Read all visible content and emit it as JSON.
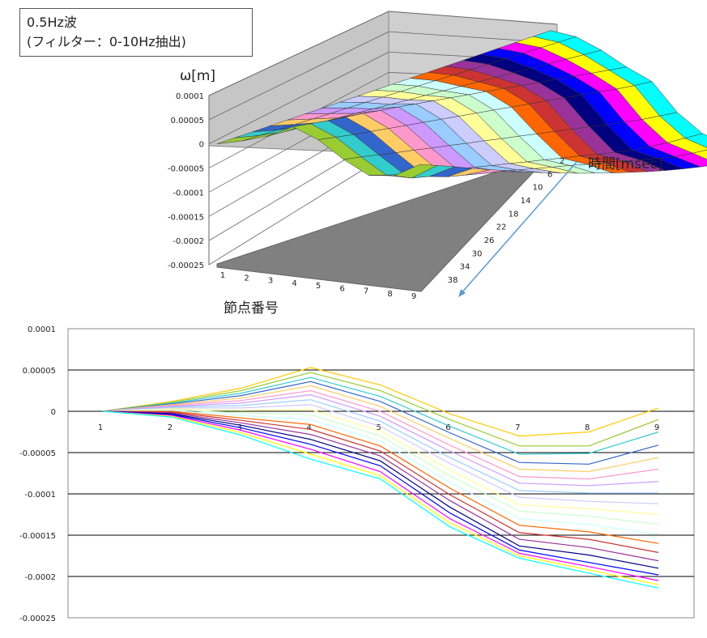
{
  "annotation": {
    "line1": "0.5Hz波",
    "line2": "(フィルター：0-10Hz抽出)"
  },
  "colors": {
    "line_palette": [
      "#ffcc00",
      "#99cc33",
      "#33cccc",
      "#3366cc",
      "#ffcc66",
      "#ff99cc",
      "#cc99ff",
      "#99ccff",
      "#ccccff",
      "#ffff99",
      "#ccffcc",
      "#ccffff",
      "#ff6600",
      "#cc3333",
      "#993399",
      "#000080",
      "#0000ff",
      "#ff00ff",
      "#ffff00",
      "#00ffff"
    ],
    "floor": "#808080",
    "wall": "#c8c8c8"
  },
  "chart_data": [
    {
      "type": "surface3d",
      "zlabel": "ω[m]",
      "xlabel": "節点番号",
      "ylabel": "時間[msec]",
      "x_ticks": [
        "1",
        "2",
        "3",
        "4",
        "5",
        "6",
        "7",
        "8",
        "9"
      ],
      "y_ticks": [
        "2",
        "6",
        "10",
        "14",
        "18",
        "22",
        "26",
        "30",
        "34",
        "38"
      ],
      "z_ticks": [
        "0.0001",
        "0.00005",
        "0",
        "-0.00005",
        "-0.0001",
        "-0.00015",
        "-0.0002",
        "-0.00025"
      ],
      "zlim": [
        -0.00025,
        0.0001
      ]
    },
    {
      "type": "line",
      "categories": [
        "1",
        "2",
        "3",
        "4",
        "5",
        "6",
        "7",
        "8",
        "9"
      ],
      "y_ticks": [
        "0.0001",
        "0.00005",
        "0",
        "-0.00005",
        "-0.0001",
        "-0.00015",
        "-0.0002",
        "-0.00025"
      ],
      "ylim": [
        -0.00025,
        0.0001
      ],
      "grid": true,
      "series": [
        {
          "values": [
            0,
            1.2e-05,
            2.8e-05,
            5.3e-05,
            3.2e-05,
            -3e-06,
            -3e-05,
            -2.5e-05,
            4e-06
          ]
        },
        {
          "values": [
            0,
            1.1e-05,
            2.5e-05,
            4.7e-05,
            2.5e-05,
            -1e-05,
            -4.2e-05,
            -4.2e-05,
            -1e-05
          ]
        },
        {
          "values": [
            0,
            1e-05,
            2.2e-05,
            4.1e-05,
            1.8e-05,
            -1.8e-05,
            -5.2e-05,
            -5.1e-05,
            -2.5e-05
          ]
        },
        {
          "values": [
            0,
            9e-06,
            1.9e-05,
            3.6e-05,
            1.2e-05,
            -2.6e-05,
            -6.2e-05,
            -6.4e-05,
            -4.1e-05
          ]
        },
        {
          "values": [
            0,
            8e-06,
            1.6e-05,
            3.1e-05,
            6e-06,
            -3.3e-05,
            -7e-05,
            -7.3e-05,
            -5.6e-05
          ]
        },
        {
          "values": [
            0,
            7e-06,
            1.3e-05,
            2.5e-05,
            0.0,
            -4.1e-05,
            -7.9e-05,
            -8.2e-05,
            -7e-05
          ]
        },
        {
          "values": [
            0,
            6e-06,
            1e-05,
            2e-05,
            -6e-06,
            -4.8e-05,
            -8.7e-05,
            -9e-05,
            -8.5e-05
          ]
        },
        {
          "values": [
            0,
            5e-06,
            7e-06,
            1.4e-05,
            -1.2e-05,
            -5.6e-05,
            -9.6e-05,
            -9.9e-05,
            -9.9e-05
          ]
        },
        {
          "values": [
            0,
            4e-06,
            4e-06,
            8e-06,
            -1.8e-05,
            -6.3e-05,
            -0.000104,
            -0.000109,
            -0.000112
          ]
        },
        {
          "values": [
            0,
            3e-06,
            1e-06,
            2e-06,
            -2.4e-05,
            -7.1e-05,
            -0.000113,
            -0.000118,
            -0.000125
          ]
        },
        {
          "values": [
            0,
            2e-06,
            -2e-06,
            -4e-06,
            -3e-05,
            -7.8e-05,
            -0.000121,
            -0.000127,
            -0.000137
          ]
        },
        {
          "values": [
            0,
            1e-06,
            -5e-06,
            -1e-05,
            -3.6e-05,
            -8.6e-05,
            -0.00013,
            -0.000137,
            -0.000149
          ]
        },
        {
          "values": [
            0,
            0.0,
            -8e-06,
            -1.6e-05,
            -4.2e-05,
            -9.3e-05,
            -0.000138,
            -0.000146,
            -0.00016
          ]
        },
        {
          "values": [
            0,
            -1e-06,
            -1.1e-05,
            -2.2e-05,
            -4.8e-05,
            -0.000101,
            -0.000147,
            -0.000155,
            -0.000171
          ]
        },
        {
          "values": [
            0,
            -2e-06,
            -1.4e-05,
            -2.8e-05,
            -5.4e-05,
            -0.000108,
            -0.000155,
            -0.000165,
            -0.000181
          ]
        },
        {
          "values": [
            0,
            -3e-06,
            -1.7e-05,
            -3.4e-05,
            -6e-05,
            -0.000116,
            -0.000163,
            -0.000174,
            -0.00019
          ]
        },
        {
          "values": [
            0,
            -4e-06,
            -2e-05,
            -4e-05,
            -6.6e-05,
            -0.000123,
            -0.000168,
            -0.000183,
            -0.000198
          ]
        },
        {
          "values": [
            0,
            -5e-06,
            -2.3e-05,
            -4.6e-05,
            -7.3e-05,
            -0.00013,
            -0.000172,
            -0.000188,
            -0.000205
          ]
        },
        {
          "values": [
            0,
            -6e-06,
            -2.6e-05,
            -5.2e-05,
            -7.8e-05,
            -0.000135,
            -0.000175,
            -0.000192,
            -0.00021
          ]
        },
        {
          "values": [
            0,
            -7e-06,
            -2.9e-05,
            -5.8e-05,
            -8.2e-05,
            -0.00014,
            -0.000178,
            -0.000196,
            -0.000214
          ]
        }
      ]
    }
  ]
}
